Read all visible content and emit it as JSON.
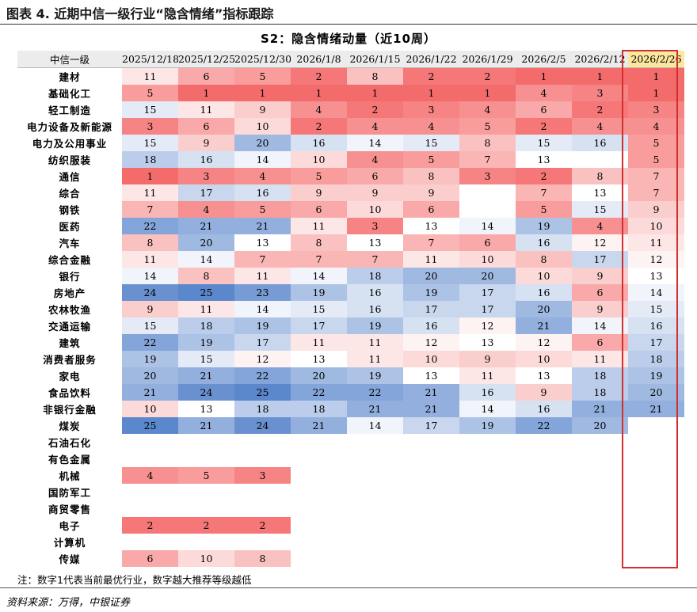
{
  "figure": {
    "title": "图表 4. 近期中信一级行业“隐含情绪”指标跟踪",
    "table_title": "S2：隐含情绪动量（近10周）",
    "note": "注：数字1代表当前最优行业，数字越大推荐等级越低",
    "source": "资料来源：万得，中银证券"
  },
  "chart_data": {
    "type": "table",
    "header_label": "中信一级",
    "highlight_column": "2026/2/26",
    "columns": [
      "2025/12/18",
      "2025/12/25",
      "2025/12/30",
      "2026/1/8",
      "2026/1/15",
      "2026/1/22",
      "2026/1/29",
      "2026/2/5",
      "2026/2/12",
      "2026/2/26"
    ],
    "rows": [
      {
        "name": "建材",
        "values": [
          11,
          6,
          5,
          2,
          8,
          2,
          2,
          1,
          1,
          1
        ]
      },
      {
        "name": "基础化工",
        "values": [
          5,
          1,
          1,
          1,
          1,
          1,
          1,
          4,
          3,
          1
        ]
      },
      {
        "name": "轻工制造",
        "values": [
          15,
          11,
          9,
          4,
          2,
          3,
          4,
          6,
          2,
          3
        ]
      },
      {
        "name": "电力设备及新能源",
        "values": [
          3,
          6,
          10,
          2,
          4,
          4,
          5,
          2,
          4,
          4
        ]
      },
      {
        "name": "电力及公用事业",
        "values": [
          15,
          9,
          20,
          16,
          14,
          15,
          8,
          15,
          16,
          5
        ]
      },
      {
        "name": "纺织服装",
        "values": [
          18,
          16,
          14,
          10,
          4,
          5,
          7,
          13,
          null,
          5
        ]
      },
      {
        "name": "通信",
        "values": [
          1,
          3,
          4,
          5,
          6,
          8,
          3,
          2,
          8,
          7
        ]
      },
      {
        "name": "综合",
        "values": [
          11,
          17,
          16,
          9,
          9,
          9,
          null,
          7,
          13,
          7
        ]
      },
      {
        "name": "钢铁",
        "values": [
          7,
          4,
          5,
          6,
          10,
          6,
          null,
          5,
          15,
          9
        ]
      },
      {
        "name": "医药",
        "values": [
          22,
          21,
          21,
          11,
          3,
          13,
          14,
          19,
          4,
          10
        ]
      },
      {
        "name": "汽车",
        "values": [
          8,
          20,
          13,
          8,
          13,
          7,
          6,
          16,
          12,
          11
        ]
      },
      {
        "name": "综合金融",
        "values": [
          11,
          14,
          7,
          7,
          7,
          11,
          10,
          8,
          17,
          12
        ]
      },
      {
        "name": "银行",
        "values": [
          14,
          8,
          11,
          14,
          18,
          20,
          20,
          10,
          9,
          13
        ]
      },
      {
        "name": "房地产",
        "values": [
          24,
          25,
          23,
          19,
          16,
          19,
          17,
          16,
          6,
          14
        ]
      },
      {
        "name": "农林牧渔",
        "values": [
          9,
          11,
          14,
          15,
          16,
          17,
          17,
          20,
          9,
          15
        ]
      },
      {
        "name": "交通运输",
        "values": [
          15,
          18,
          19,
          17,
          19,
          16,
          12,
          21,
          14,
          16
        ]
      },
      {
        "name": "建筑",
        "values": [
          22,
          19,
          17,
          11,
          11,
          12,
          13,
          12,
          6,
          17
        ]
      },
      {
        "name": "消费者服务",
        "values": [
          19,
          15,
          12,
          13,
          11,
          10,
          9,
          10,
          11,
          18
        ]
      },
      {
        "name": "家电",
        "values": [
          20,
          21,
          22,
          20,
          19,
          13,
          11,
          13,
          18,
          19
        ]
      },
      {
        "name": "食品饮料",
        "values": [
          21,
          24,
          25,
          22,
          22,
          21,
          16,
          9,
          18,
          20
        ]
      },
      {
        "name": "非银行金融",
        "values": [
          10,
          13,
          18,
          18,
          21,
          21,
          14,
          16,
          21,
          21
        ]
      },
      {
        "name": "煤炭",
        "values": [
          25,
          21,
          24,
          21,
          14,
          17,
          19,
          22,
          20,
          null
        ]
      },
      {
        "name": "石油石化",
        "values": [
          null,
          null,
          null,
          null,
          null,
          null,
          null,
          null,
          null,
          null
        ]
      },
      {
        "name": "有色金属",
        "values": [
          null,
          null,
          null,
          null,
          null,
          null,
          null,
          null,
          null,
          null
        ]
      },
      {
        "name": "机械",
        "values": [
          4,
          5,
          3,
          null,
          null,
          null,
          null,
          null,
          null,
          null
        ]
      },
      {
        "name": "国防军工",
        "values": [
          null,
          null,
          null,
          null,
          null,
          null,
          null,
          null,
          null,
          null
        ]
      },
      {
        "name": "商贸零售",
        "values": [
          null,
          null,
          null,
          null,
          null,
          null,
          null,
          null,
          null,
          null
        ]
      },
      {
        "name": "电子",
        "values": [
          2,
          2,
          2,
          null,
          null,
          null,
          null,
          null,
          null,
          null
        ]
      },
      {
        "name": "计算机",
        "values": [
          null,
          null,
          null,
          null,
          null,
          null,
          null,
          null,
          null,
          null
        ]
      },
      {
        "name": "传媒",
        "values": [
          6,
          10,
          8,
          null,
          null,
          null,
          null,
          null,
          null,
          null
        ]
      }
    ],
    "color_scale": {
      "low_rank_color": "#f46b6b",
      "mid_color": "#ffffff",
      "high_rank_color": "#5b87cc",
      "min": 1,
      "max": 25
    },
    "highlight_header_color": "#fce79f",
    "highlight_border_color": "#d03030"
  }
}
